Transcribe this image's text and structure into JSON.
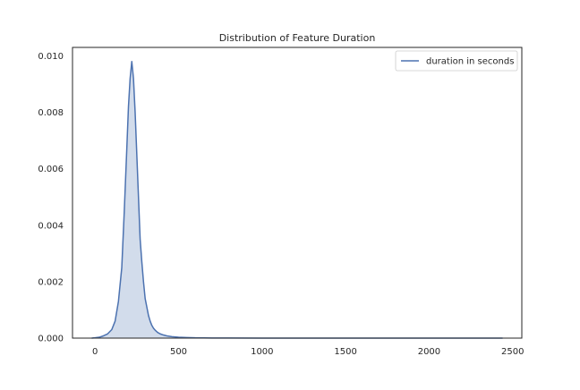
{
  "chart_data": {
    "type": "area",
    "title": "Distribution of Feature Duration",
    "xlabel": "",
    "ylabel": "",
    "xlim": [
      -135,
      2555
    ],
    "ylim": [
      0,
      0.0103
    ],
    "x_ticks": [
      0,
      500,
      1000,
      1500,
      2000,
      2500
    ],
    "x_tick_labels": [
      "0",
      "500",
      "1000",
      "1500",
      "2000",
      "2500"
    ],
    "y_ticks": [
      0,
      0.002,
      0.004,
      0.006,
      0.008,
      0.01
    ],
    "y_tick_labels": [
      "0.000",
      "0.002",
      "0.004",
      "0.006",
      "0.008",
      "0.010"
    ],
    "grid": false,
    "legend_position": "top-right",
    "series": [
      {
        "name": "duration in seconds",
        "color": "#4c72b0",
        "fill_color": "#4c72b0",
        "fill_opacity": 0.25,
        "x": [
          -20,
          0,
          25,
          50,
          75,
          100,
          120,
          140,
          160,
          175,
          190,
          200,
          210,
          220,
          230,
          240,
          250,
          260,
          270,
          280,
          290,
          300,
          310,
          320,
          330,
          340,
          350,
          360,
          375,
          390,
          410,
          430,
          460,
          500,
          550,
          600,
          700,
          800,
          1000,
          1500,
          2000,
          2440
        ],
        "y": [
          0.0,
          1e-05,
          3e-05,
          8e-05,
          0.00015,
          0.0003,
          0.0006,
          0.0013,
          0.0025,
          0.0045,
          0.0067,
          0.0082,
          0.0092,
          0.0098,
          0.0092,
          0.008,
          0.0065,
          0.005,
          0.0035,
          0.0027,
          0.002,
          0.0014,
          0.0011,
          0.0008,
          0.0006,
          0.00045,
          0.00035,
          0.00028,
          0.0002,
          0.00015,
          0.00011,
          8e-05,
          5e-05,
          3e-05,
          2e-05,
          1e-05,
          5e-06,
          3e-06,
          2e-06,
          1e-06,
          1e-06,
          0.0
        ]
      }
    ]
  }
}
